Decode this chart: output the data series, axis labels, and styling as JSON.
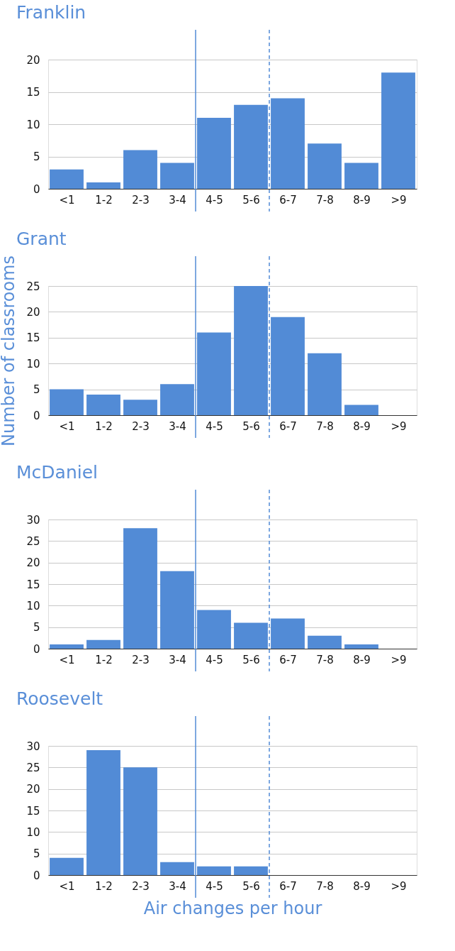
{
  "chart_data": [
    {
      "type": "bar",
      "title": "Franklin",
      "categories": [
        "<1",
        "1-2",
        "2-3",
        "3-4",
        "4-5",
        "5-6",
        "6-7",
        "7-8",
        "8-9",
        ">9"
      ],
      "color": "#528bd6",
      "values": [
        3,
        1,
        6,
        4,
        11,
        13,
        14,
        7,
        4,
        18
      ],
      "ylim": [
        0,
        20
      ],
      "yticks": [
        0,
        5,
        10,
        15,
        20
      ],
      "grid": "y",
      "ref_lines": [
        {
          "axis": "x",
          "value": "4-5",
          "color": "#528bd6",
          "line_style": "solid"
        },
        {
          "axis": "x",
          "value": "6-7",
          "color": "#528bd6",
          "line_style": "dashed"
        }
      ]
    },
    {
      "type": "bar",
      "title": "Grant",
      "ylabel": "Number of classrooms",
      "categories": [
        "<1",
        "1-2",
        "2-3",
        "3-4",
        "4-5",
        "5-6",
        "6-7",
        "7-8",
        "8-9",
        ">9"
      ],
      "color": "#528bd6",
      "values": [
        5,
        4,
        3,
        6,
        16,
        25,
        19,
        12,
        2,
        0
      ],
      "ylim": [
        0,
        25
      ],
      "yticks": [
        0,
        5,
        10,
        15,
        20,
        25
      ],
      "grid": "y",
      "ref_lines": [
        {
          "axis": "x",
          "value": "4-5",
          "color": "#528bd6",
          "line_style": "solid"
        },
        {
          "axis": "x",
          "value": "6-7",
          "color": "#528bd6",
          "line_style": "dashed"
        }
      ]
    },
    {
      "type": "bar",
      "title": "McDaniel",
      "categories": [
        "<1",
        "1-2",
        "2-3",
        "3-4",
        "4-5",
        "5-6",
        "6-7",
        "7-8",
        "8-9",
        ">9"
      ],
      "color": "#528bd6",
      "values": [
        1,
        2,
        28,
        18,
        9,
        6,
        7,
        3,
        1,
        0
      ],
      "ylim": [
        0,
        30
      ],
      "yticks": [
        0,
        5,
        10,
        15,
        20,
        25,
        30
      ],
      "grid": "y",
      "ref_lines": [
        {
          "axis": "x",
          "value": "4-5",
          "color": "#528bd6",
          "line_style": "solid"
        },
        {
          "axis": "x",
          "value": "6-7",
          "color": "#528bd6",
          "line_style": "dashed"
        }
      ]
    },
    {
      "type": "bar",
      "title": "Roosevelt",
      "xlabel": "Air changes per hour",
      "categories": [
        "<1",
        "1-2",
        "2-3",
        "3-4",
        "4-5",
        "5-6",
        "6-7",
        "7-8",
        "8-9",
        ">9"
      ],
      "color": "#528bd6",
      "values": [
        4,
        29,
        25,
        3,
        2,
        2,
        0,
        0,
        0,
        0
      ],
      "ylim": [
        0,
        30
      ],
      "yticks": [
        0,
        5,
        10,
        15,
        20,
        25,
        30
      ],
      "grid": "y",
      "ref_lines": [
        {
          "axis": "x",
          "value": "4-5",
          "color": "#528bd6",
          "line_style": "solid"
        },
        {
          "axis": "x",
          "value": "6-7",
          "color": "#528bd6",
          "line_style": "dashed"
        }
      ]
    }
  ]
}
